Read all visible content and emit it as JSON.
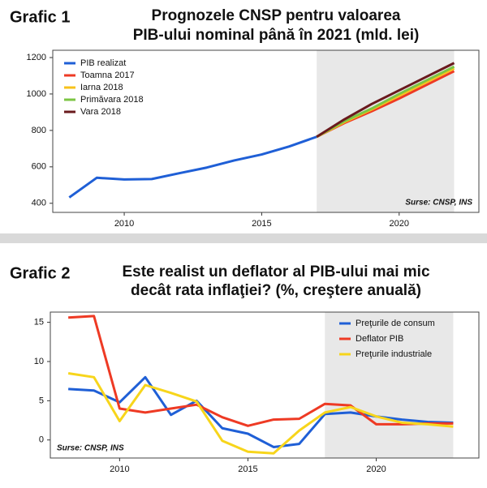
{
  "chart_data": [
    {
      "type": "line",
      "label": "Grafic 1",
      "title": [
        "Prognozele CNSP pentru valoarea",
        "PIB-ului nominal până în 2021 (mld. lei)"
      ],
      "note": "Surse: CNSP, INS",
      "note_position": "bottom-right",
      "legend": "top-left",
      "x": [
        2008,
        2009,
        2010,
        2011,
        2012,
        2013,
        2014,
        2015,
        2016,
        2017,
        2018,
        2019,
        2020,
        2021,
        2022
      ],
      "xlim": [
        2007.4,
        2022.9
      ],
      "xticks": [
        2010,
        2015,
        2020
      ],
      "ylim": [
        350,
        1240
      ],
      "yticks": [
        400,
        600,
        800,
        1000,
        1200
      ],
      "shaded_xrange": [
        2017,
        2022
      ],
      "series": [
        {
          "name": "PIB realizat",
          "color": "#1f5fd6",
          "values": [
            432,
            540,
            531,
            533,
            565,
            596,
            635,
            668,
            712,
            765,
            null,
            null,
            null,
            null,
            null
          ]
        },
        {
          "name": "Toamna 2017",
          "color": "#ee3a24",
          "values": [
            null,
            null,
            null,
            null,
            null,
            null,
            null,
            null,
            null,
            765,
            840,
            905,
            975,
            1050,
            1125
          ]
        },
        {
          "name": "Iarna 2018",
          "color": "#f7c21b",
          "values": [
            null,
            null,
            null,
            null,
            null,
            null,
            null,
            null,
            null,
            765,
            845,
            915,
            990,
            1065,
            1140
          ]
        },
        {
          "name": "Primăvara 2018",
          "color": "#7cc544",
          "values": [
            null,
            null,
            null,
            null,
            null,
            null,
            null,
            null,
            null,
            765,
            850,
            920,
            1000,
            1075,
            1150
          ]
        },
        {
          "name": "Vara 2018",
          "color": "#6a1a1d",
          "values": [
            null,
            null,
            null,
            null,
            null,
            null,
            null,
            null,
            null,
            765,
            860,
            945,
            1020,
            1095,
            1170
          ]
        }
      ]
    },
    {
      "type": "line",
      "label": "Grafic 2",
      "title": [
        "Este realist un deflator al PIB-ului mai mic",
        "decât rata inflaţiei? (%, creştere anuală)"
      ],
      "note": "Surse: CNSP, INS",
      "note_position": "bottom-left",
      "legend": "top-right",
      "x": [
        2008,
        2009,
        2010,
        2011,
        2012,
        2013,
        2014,
        2015,
        2016,
        2017,
        2018,
        2019,
        2020,
        2021,
        2022,
        2023
      ],
      "xlim": [
        2007.3,
        2024
      ],
      "xticks": [
        2010,
        2015,
        2020
      ],
      "ylim": [
        -2.3,
        16.3
      ],
      "yticks": [
        0,
        5,
        10,
        15
      ],
      "shaded_xrange": [
        2018,
        2023
      ],
      "series": [
        {
          "name": "Preţurile de consum",
          "color": "#1f5fd6",
          "values": [
            6.5,
            6.3,
            4.8,
            8.0,
            3.2,
            5.0,
            1.5,
            0.8,
            -0.9,
            -0.5,
            3.3,
            3.5,
            3.0,
            2.6,
            2.3,
            2.2
          ]
        },
        {
          "name": "Deflator PIB",
          "color": "#ee3a24",
          "values": [
            15.6,
            15.8,
            4.0,
            3.5,
            4.0,
            4.5,
            2.9,
            1.8,
            2.6,
            2.7,
            4.6,
            4.4,
            2.0,
            2.0,
            2.1,
            2.1
          ]
        },
        {
          "name": "Preţurile industriale",
          "color": "#f7d51b",
          "values": [
            8.5,
            8.0,
            2.4,
            7.0,
            6.0,
            4.9,
            -0.1,
            -1.5,
            -1.7,
            1.2,
            3.5,
            4.2,
            3.0,
            2.2,
            2.0,
            1.7
          ]
        }
      ]
    }
  ]
}
